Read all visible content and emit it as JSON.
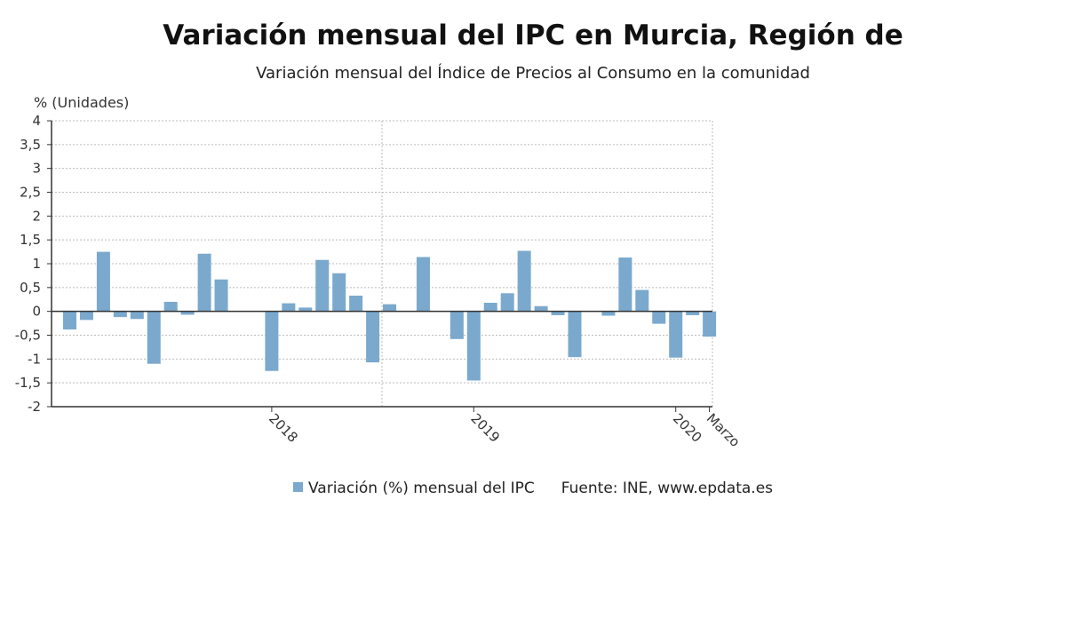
{
  "title": "Variación mensual del IPC en Murcia, Región de",
  "subtitle": "Variación mensual del Índice de Precios al Consumo en la comunidad",
  "unit_label": "% (Unidades)",
  "source": "Fuente: INE, www.epdata.es",
  "colors": {
    "bar": "#7aa9cd",
    "grid": "#bbbbbb",
    "axis": "#333333"
  },
  "chart_data": {
    "type": "bar",
    "ylabel": "% (Unidades)",
    "ylim": [
      -2,
      4
    ],
    "grid": true,
    "legend_position": "bottom",
    "y_ticks": [
      "4",
      "3,5",
      "3",
      "2,5",
      "2",
      "1,5",
      "1",
      "0,5",
      "0",
      "-0,5",
      "-1",
      "-1,5",
      "-2"
    ],
    "x_tick_labels": [
      {
        "label": "2018",
        "month_index": 12
      },
      {
        "label": "2019",
        "month_index": 24
      },
      {
        "label": "2020",
        "month_index": 36
      },
      {
        "label": "Marzo",
        "month_index": 38
      }
    ],
    "series": [
      {
        "name": "Variación (%) mensual del IPC",
        "categories": [
          "2017-01",
          "2017-02",
          "2017-03",
          "2017-04",
          "2017-05",
          "2017-06",
          "2017-07",
          "2017-08",
          "2017-09",
          "2017-10",
          "2017-11",
          "2017-12",
          "2018-01",
          "2018-02",
          "2018-03",
          "2018-04",
          "2018-05",
          "2018-06",
          "2018-07",
          "2018-08",
          "2018-09",
          "2018-10",
          "2018-11",
          "2018-12",
          "2019-01",
          "2019-02",
          "2019-03",
          "2019-04",
          "2019-05",
          "2019-06",
          "2019-07",
          "2019-08",
          "2019-09",
          "2019-10",
          "2019-11",
          "2019-12",
          "2020-01",
          "2020-02",
          "2020-03"
        ],
        "values": [
          -0.38,
          -0.18,
          1.25,
          -0.12,
          -0.16,
          -1.1,
          0.2,
          -0.07,
          1.21,
          0.67,
          0.0,
          0.0,
          -1.25,
          0.17,
          0.08,
          1.08,
          0.8,
          0.33,
          -1.07,
          0.15,
          0.0,
          1.14,
          0.0,
          -0.58,
          -1.45,
          0.18,
          0.38,
          1.27,
          0.11,
          -0.08,
          -0.96,
          0.0,
          -0.09,
          1.13,
          0.45,
          -0.26,
          -0.97,
          -0.08,
          -0.53
        ]
      }
    ]
  }
}
